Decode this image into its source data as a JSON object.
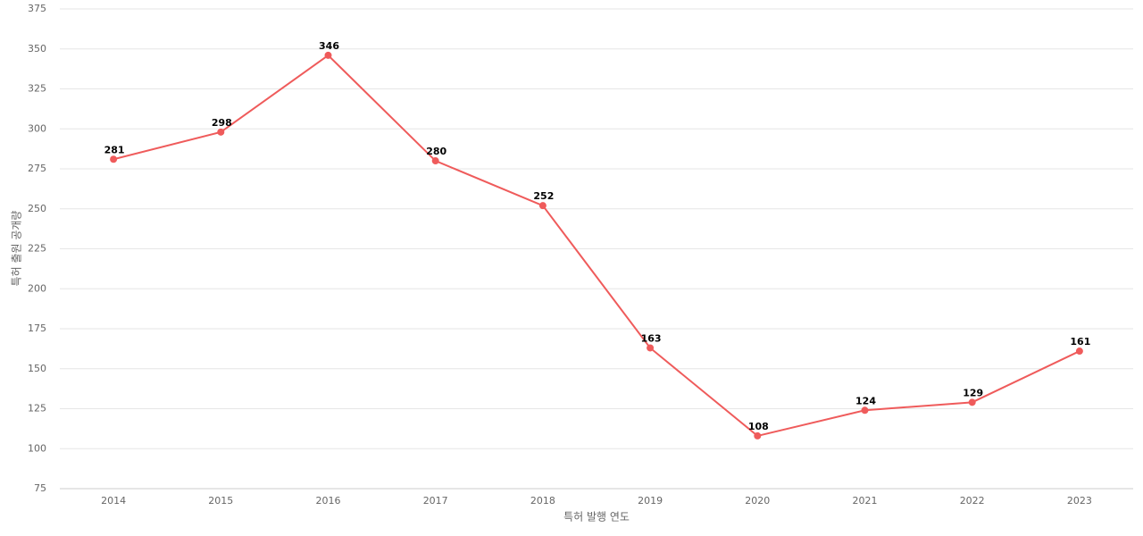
{
  "chart_data": {
    "type": "line",
    "x_label": "특허 발행 연도",
    "y_label": "특허 출원 공개량",
    "categories": [
      "2014",
      "2015",
      "2016",
      "2017",
      "2018",
      "2019",
      "2020",
      "2021",
      "2022",
      "2023"
    ],
    "values": [
      281,
      298,
      346,
      280,
      252,
      163,
      108,
      124,
      129,
      161
    ],
    "color": "#ef5b5b",
    "ylim": [
      75,
      375
    ],
    "yticks": [
      75,
      100,
      125,
      150,
      175,
      200,
      225,
      250,
      275,
      300,
      325,
      350,
      375
    ],
    "grid": true,
    "data_labels": true
  }
}
